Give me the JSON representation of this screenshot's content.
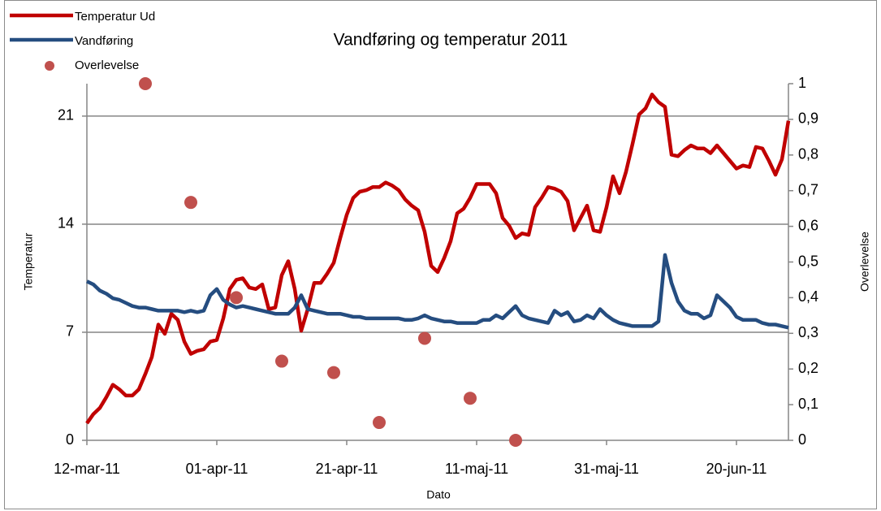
{
  "chart_data": {
    "type": "line",
    "title": "Vandføring og temperatur 2011",
    "x_label": "Dato",
    "y_label": "Temperatur",
    "y2_label": "Overlevelse",
    "xlim": [
      "2011-03-12",
      "2011-06-28"
    ],
    "xticks": [
      {
        "value": "2011-03-12",
        "label": "12-mar-11"
      },
      {
        "value": "2011-04-01",
        "label": "01-apr-11"
      },
      {
        "value": "2011-04-21",
        "label": "21-apr-11"
      },
      {
        "value": "2011-05-11",
        "label": "11-maj-11"
      },
      {
        "value": "2011-05-31",
        "label": "31-maj-11"
      },
      {
        "value": "2011-06-20",
        "label": "20-jun-11"
      }
    ],
    "ylim": [
      0,
      23.1
    ],
    "yticks": [
      0,
      7,
      14,
      21
    ],
    "y2lim": [
      0,
      1
    ],
    "y2ticks": [
      0,
      {
        "value": 0.1,
        "label": "0,1"
      },
      {
        "value": 0.2,
        "label": "0,2"
      },
      {
        "value": 0.3,
        "label": "0,3"
      },
      {
        "value": 0.4,
        "label": "0,4"
      },
      {
        "value": 0.5,
        "label": "0,5"
      },
      {
        "value": 0.6,
        "label": "0,6"
      },
      {
        "value": 0.7,
        "label": "0,7"
      },
      {
        "value": 0.8,
        "label": "0,8"
      },
      {
        "value": 0.9,
        "label": "0,9"
      },
      1
    ],
    "grid": true,
    "legend": "top-left",
    "x": [
      "2011-03-12",
      "2011-03-13",
      "2011-03-14",
      "2011-03-15",
      "2011-03-16",
      "2011-03-17",
      "2011-03-18",
      "2011-03-19",
      "2011-03-20",
      "2011-03-21",
      "2011-03-22",
      "2011-03-23",
      "2011-03-24",
      "2011-03-25",
      "2011-03-26",
      "2011-03-27",
      "2011-03-28",
      "2011-03-29",
      "2011-03-30",
      "2011-03-31",
      "2011-04-01",
      "2011-04-02",
      "2011-04-03",
      "2011-04-04",
      "2011-04-05",
      "2011-04-06",
      "2011-04-07",
      "2011-04-08",
      "2011-04-09",
      "2011-04-10",
      "2011-04-11",
      "2011-04-12",
      "2011-04-13",
      "2011-04-14",
      "2011-04-15",
      "2011-04-16",
      "2011-04-17",
      "2011-04-18",
      "2011-04-19",
      "2011-04-20",
      "2011-04-21",
      "2011-04-22",
      "2011-04-23",
      "2011-04-24",
      "2011-04-25",
      "2011-04-26",
      "2011-04-27",
      "2011-04-28",
      "2011-04-29",
      "2011-04-30",
      "2011-05-01",
      "2011-05-02",
      "2011-05-03",
      "2011-05-04",
      "2011-05-05",
      "2011-05-06",
      "2011-05-07",
      "2011-05-08",
      "2011-05-09",
      "2011-05-10",
      "2011-05-11",
      "2011-05-12",
      "2011-05-13",
      "2011-05-14",
      "2011-05-15",
      "2011-05-16",
      "2011-05-17",
      "2011-05-18",
      "2011-05-19",
      "2011-05-20",
      "2011-05-21",
      "2011-05-22",
      "2011-05-23",
      "2011-05-24",
      "2011-05-25",
      "2011-05-26",
      "2011-05-27",
      "2011-05-28",
      "2011-05-29",
      "2011-05-30",
      "2011-05-31",
      "2011-06-01",
      "2011-06-02",
      "2011-06-03",
      "2011-06-04",
      "2011-06-05",
      "2011-06-06",
      "2011-06-07",
      "2011-06-08",
      "2011-06-09",
      "2011-06-10",
      "2011-06-11",
      "2011-06-12",
      "2011-06-13",
      "2011-06-14",
      "2011-06-15",
      "2011-06-16",
      "2011-06-17",
      "2011-06-18",
      "2011-06-19",
      "2011-06-20",
      "2011-06-21",
      "2011-06-22",
      "2011-06-23",
      "2011-06-24",
      "2011-06-25",
      "2011-06-26",
      "2011-06-27",
      "2011-06-28"
    ],
    "series": [
      {
        "name": "Temperatur Ud",
        "type": "line",
        "color": "#c00000",
        "axis": "y",
        "values": [
          1.1,
          1.7,
          2.1,
          2.8,
          3.6,
          3.3,
          2.9,
          2.9,
          3.3,
          4.3,
          5.4,
          7.5,
          6.9,
          8.2,
          7.8,
          6.4,
          5.6,
          5.8,
          5.9,
          6.4,
          6.5,
          7.9,
          9.8,
          10.4,
          10.5,
          9.9,
          9.8,
          10.1,
          8.5,
          8.6,
          10.7,
          11.6,
          9.8,
          7.1,
          8.5,
          10.2,
          10.2,
          10.8,
          11.5,
          13.1,
          14.6,
          15.7,
          16.1,
          16.2,
          16.4,
          16.4,
          16.7,
          16.5,
          16.2,
          15.6,
          15.2,
          14.9,
          13.5,
          11.3,
          10.9,
          11.8,
          12.9,
          14.7,
          15.0,
          15.7,
          16.6,
          16.6,
          16.6,
          16.0,
          14.4,
          13.9,
          13.1,
          13.4,
          13.3,
          15.1,
          15.7,
          16.4,
          16.3,
          16.1,
          15.5,
          13.6,
          14.4,
          15.2,
          13.6,
          13.5,
          15.1,
          17.1,
          16.0,
          17.4,
          19.2,
          21.1,
          21.5,
          22.4,
          21.9,
          21.6,
          18.5,
          18.4,
          18.8,
          19.1,
          18.9,
          18.9,
          18.6,
          19.1,
          18.6,
          18.1,
          17.6,
          17.8,
          17.7,
          19.0,
          18.9,
          18.1,
          17.2,
          18.2,
          20.7
        ]
      },
      {
        "name": "Vandføring",
        "type": "line",
        "color": "#254d80",
        "axis": "y",
        "values": [
          10.3,
          10.1,
          9.7,
          9.5,
          9.2,
          9.1,
          8.9,
          8.7,
          8.6,
          8.6,
          8.5,
          8.4,
          8.4,
          8.4,
          8.4,
          8.3,
          8.4,
          8.3,
          8.4,
          9.4,
          9.8,
          9.1,
          8.8,
          8.6,
          8.7,
          8.6,
          8.5,
          8.4,
          8.3,
          8.2,
          8.2,
          8.2,
          8.6,
          9.4,
          8.5,
          8.4,
          8.3,
          8.2,
          8.2,
          8.2,
          8.1,
          8.0,
          8.0,
          7.9,
          7.9,
          7.9,
          7.9,
          7.9,
          7.9,
          7.8,
          7.8,
          7.9,
          8.1,
          7.9,
          7.8,
          7.7,
          7.7,
          7.6,
          7.6,
          7.6,
          7.6,
          7.8,
          7.8,
          8.1,
          7.9,
          8.3,
          8.7,
          8.1,
          7.9,
          7.8,
          7.7,
          7.6,
          8.4,
          8.1,
          8.3,
          7.7,
          7.8,
          8.1,
          7.9,
          8.5,
          8.1,
          7.8,
          7.6,
          7.5,
          7.4,
          7.4,
          7.4,
          7.4,
          7.7,
          12.0,
          10.2,
          9.0,
          8.4,
          8.2,
          8.2,
          7.9,
          8.1,
          9.4,
          9.0,
          8.6,
          8.0,
          7.8,
          7.8,
          7.8,
          7.6,
          7.5,
          7.5,
          7.4,
          7.3
        ]
      },
      {
        "name": "Overlevelse",
        "type": "scatter",
        "color": "#c0504d",
        "axis": "y2",
        "x": [
          "2011-03-21",
          "2011-03-28",
          "2011-04-04",
          "2011-04-11",
          "2011-04-19",
          "2011-04-26",
          "2011-05-03",
          "2011-05-10",
          "2011-05-17"
        ],
        "values": [
          1,
          0.667,
          0.4,
          0.222,
          0.19,
          0.05,
          0.286,
          0.118,
          0
        ]
      }
    ]
  }
}
